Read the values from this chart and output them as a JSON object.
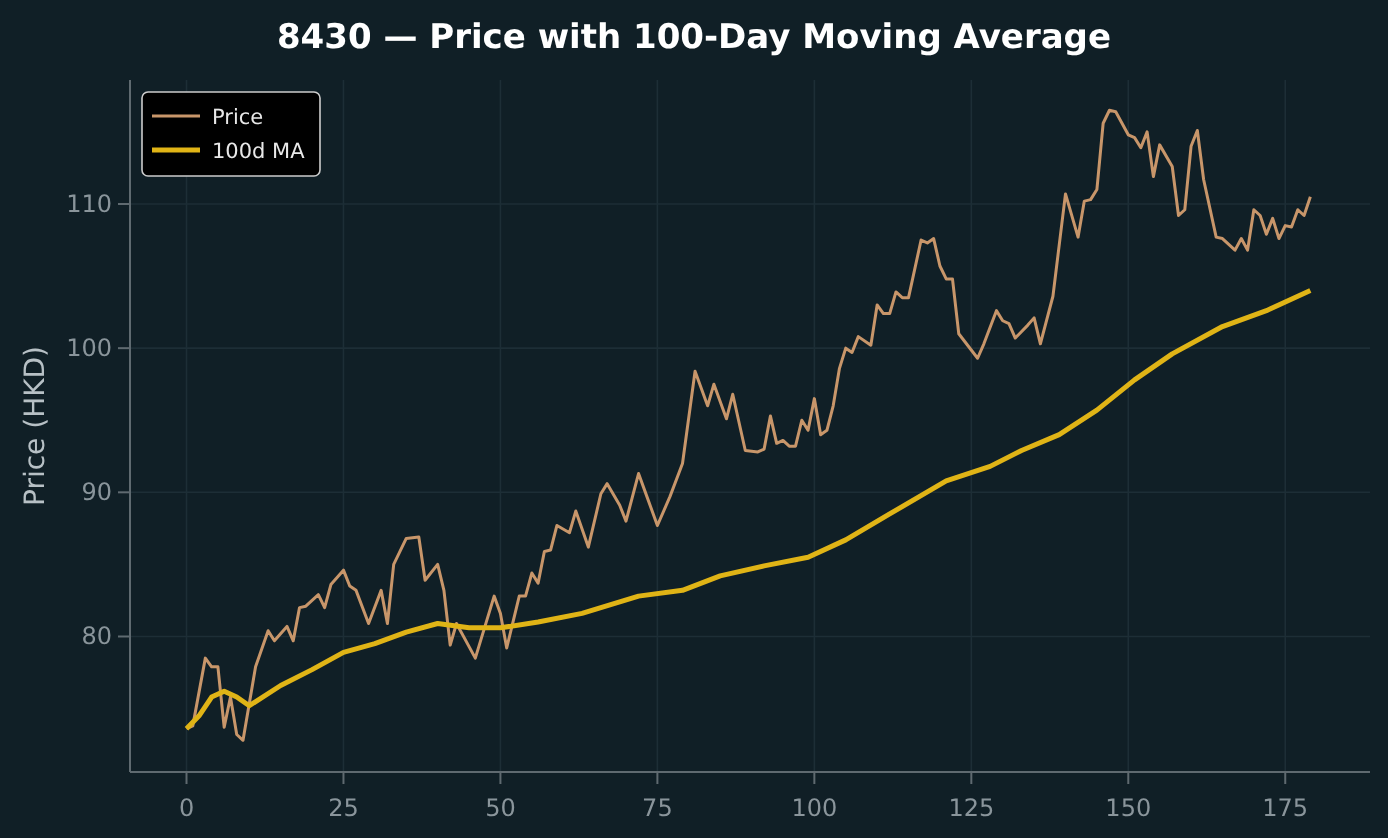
{
  "chart_data": {
    "type": "line",
    "title": "8430 — Price with 100-Day Moving Average",
    "ylabel": "Price (HKD)",
    "xlim": [
      -9,
      188.5
    ],
    "ylim": [
      70.6,
      118.6
    ],
    "xticks": [
      0,
      25,
      50,
      75,
      100,
      125,
      150,
      175
    ],
    "yticks": [
      80,
      90,
      100,
      110
    ],
    "grid": true,
    "legend": "top left",
    "series": [
      {
        "name": "Price",
        "color": "#c8966a",
        "x": [
          0,
          1,
          3,
          4,
          5,
          6,
          7,
          8,
          9,
          11,
          13,
          14,
          16,
          17,
          18,
          19,
          21,
          22,
          23,
          25,
          26,
          27,
          29,
          31,
          32,
          33,
          35,
          37,
          38,
          40,
          41,
          42,
          43,
          46,
          49,
          50,
          51,
          53,
          54,
          55,
          56,
          57,
          58,
          59,
          61,
          62,
          64,
          66,
          67,
          69,
          70,
          72,
          73,
          75,
          77,
          79,
          81,
          83,
          84,
          86,
          87,
          89,
          91,
          92,
          93,
          94,
          95,
          96,
          97,
          98,
          99,
          100,
          101,
          102,
          103,
          104,
          105,
          106,
          107,
          109,
          110,
          111,
          112,
          113,
          114,
          115,
          117,
          118,
          119,
          120,
          121,
          122,
          123,
          126,
          127,
          129,
          130,
          131,
          132,
          134,
          135,
          136,
          138,
          140,
          142,
          143,
          144,
          145,
          146,
          147,
          148,
          150,
          151,
          152,
          153,
          154,
          155,
          157,
          158,
          159,
          160,
          161,
          162,
          164,
          165,
          167,
          168,
          169,
          170,
          171,
          172,
          173,
          174,
          175,
          176,
          177,
          178,
          179
        ],
        "values": [
          73.6,
          73.8,
          78.5,
          77.9,
          77.9,
          73.7,
          75.8,
          73.2,
          72.8,
          77.9,
          80.4,
          79.7,
          80.7,
          79.7,
          82,
          82.1,
          82.9,
          82,
          83.6,
          84.6,
          83.5,
          83.2,
          80.9,
          83.2,
          80.9,
          85,
          86.8,
          86.9,
          83.9,
          85,
          83.2,
          79.4,
          80.9,
          78.5,
          82.8,
          81.6,
          79.2,
          82.8,
          82.8,
          84.4,
          83.7,
          85.9,
          86,
          87.7,
          87.2,
          88.7,
          86.2,
          89.9,
          90.6,
          89.1,
          88,
          91.3,
          90.1,
          87.7,
          89.7,
          92,
          98.4,
          96,
          97.5,
          95.1,
          96.8,
          92.9,
          92.8,
          93,
          95.3,
          93.4,
          93.6,
          93.2,
          93.2,
          95,
          94.3,
          96.5,
          94,
          94.3,
          96,
          98.6,
          100,
          99.7,
          100.8,
          100.2,
          103,
          102.4,
          102.4,
          103.9,
          103.5,
          103.5,
          107.5,
          107.3,
          107.6,
          105.7,
          104.8,
          104.8,
          101,
          99.3,
          100.3,
          102.6,
          101.9,
          101.7,
          100.7,
          101.6,
          102.1,
          100.3,
          103.6,
          110.7,
          107.7,
          110.2,
          110.3,
          111,
          115.6,
          116.5,
          116.4,
          114.8,
          114.6,
          113.9,
          115,
          111.9,
          114.1,
          112.6,
          109.2,
          109.6,
          114,
          115.1,
          111.7,
          107.7,
          107.6,
          106.8,
          107.6,
          106.8,
          109.6,
          109.2,
          107.9,
          109,
          107.6,
          108.5,
          108.4,
          109.6,
          109.2,
          110.5
        ]
      },
      {
        "name": "100d MA",
        "color": "#e0b416",
        "x": [
          0,
          2,
          4,
          6,
          8,
          10,
          15,
          20,
          25,
          30,
          35,
          40,
          45,
          50,
          56,
          63,
          72,
          79,
          85,
          92,
          99,
          105,
          112,
          121,
          128,
          133,
          139,
          145,
          151,
          157,
          165,
          172,
          179
        ],
        "values": [
          73.6,
          74.5,
          75.8,
          76.2,
          75.8,
          75.2,
          76.6,
          77.7,
          78.9,
          79.5,
          80.3,
          80.9,
          80.6,
          80.6,
          81,
          81.6,
          82.8,
          83.2,
          84.2,
          84.9,
          85.5,
          86.7,
          88.5,
          90.8,
          91.8,
          92.9,
          94,
          95.7,
          97.8,
          99.6,
          101.5,
          102.6,
          104
        ]
      }
    ]
  }
}
